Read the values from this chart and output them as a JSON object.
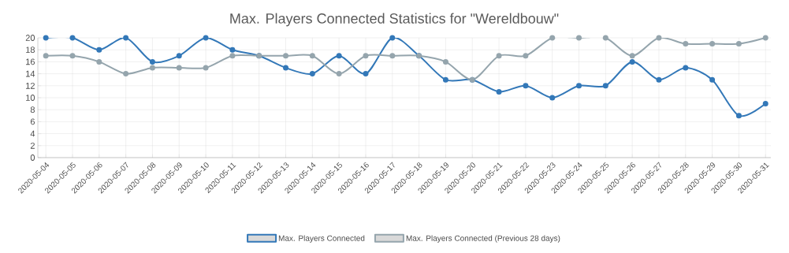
{
  "chart_data": {
    "type": "line",
    "title": "Max. Players Connected Statistics for \"Wereldbouw\"",
    "categories": [
      "2020-05-04",
      "2020-05-05",
      "2020-05-06",
      "2020-05-07",
      "2020-05-08",
      "2020-05-09",
      "2020-05-10",
      "2020-05-11",
      "2020-05-12",
      "2020-05-13",
      "2020-05-14",
      "2020-05-15",
      "2020-05-16",
      "2020-05-17",
      "2020-05-18",
      "2020-05-19",
      "2020-05-20",
      "2020-05-21",
      "2020-05-22",
      "2020-05-23",
      "2020-05-24",
      "2020-05-25",
      "2020-05-26",
      "2020-05-27",
      "2020-05-28",
      "2020-05-29",
      "2020-05-30",
      "2020-05-31"
    ],
    "series": [
      {
        "name": "Max. Players Connected",
        "color": "#3378b8",
        "values": [
          20,
          20,
          18,
          20,
          16,
          17,
          20,
          18,
          17,
          15,
          14,
          17,
          14,
          20,
          17,
          13,
          13,
          11,
          12,
          10,
          12,
          12,
          16,
          13,
          15,
          13,
          7,
          9
        ]
      },
      {
        "name": "Max. Players Connected (Previous 28 days)",
        "color": "#95a5ad",
        "values": [
          17,
          17,
          16,
          14,
          15,
          15,
          15,
          17,
          17,
          17,
          17,
          14,
          17,
          17,
          17,
          16,
          13,
          17,
          17,
          20,
          20,
          20,
          17,
          20,
          19,
          19,
          19,
          20
        ]
      }
    ],
    "ylim": [
      0,
      20
    ],
    "yticks": [
      0,
      2,
      4,
      6,
      8,
      10,
      12,
      14,
      16,
      18,
      20
    ],
    "grid": true,
    "legend": "bottom",
    "marker": "circle",
    "line_style": "solid"
  }
}
